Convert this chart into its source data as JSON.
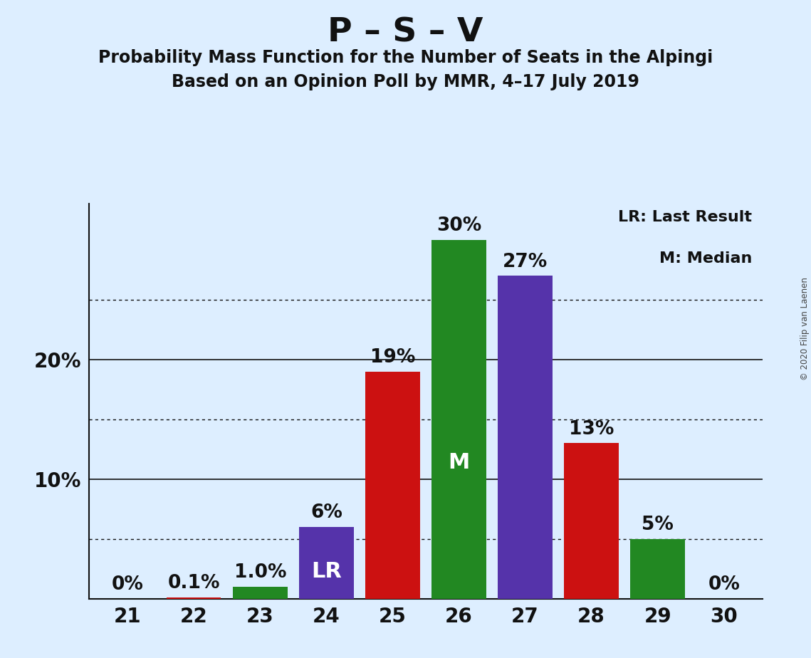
{
  "title": "P – S – V",
  "subtitle1": "Probability Mass Function for the Number of Seats in the Alpingi",
  "subtitle2": "Based on an Opinion Poll by MMR, 4–17 July 2019",
  "copyright": "© 2020 Filip van Laenen",
  "seats": [
    21,
    22,
    23,
    24,
    25,
    26,
    27,
    28,
    29,
    30
  ],
  "values": [
    0.0,
    0.1,
    1.0,
    6.0,
    19.0,
    30.0,
    27.0,
    13.0,
    5.0,
    0.0
  ],
  "bar_colors": [
    "#cc1111",
    "#cc1111",
    "#228822",
    "#5533aa",
    "#cc1111",
    "#228822",
    "#5533aa",
    "#cc1111",
    "#228822",
    "#cc1111"
  ],
  "lr_seat": 24,
  "median_seat": 26,
  "background_color": "#ddeeff",
  "ylim": [
    0,
    33
  ],
  "yticks_solid": [
    10,
    20
  ],
  "yticks_dotted": [
    5,
    15,
    25
  ],
  "legend_text1": "LR: Last Result",
  "legend_text2": "M: Median",
  "title_fontsize": 34,
  "subtitle_fontsize": 17,
  "axis_tick_fontsize": 20,
  "bar_label_fontsize": 19,
  "inside_label_fontsize": 22,
  "legend_fontsize": 16,
  "bar_width": 0.82
}
